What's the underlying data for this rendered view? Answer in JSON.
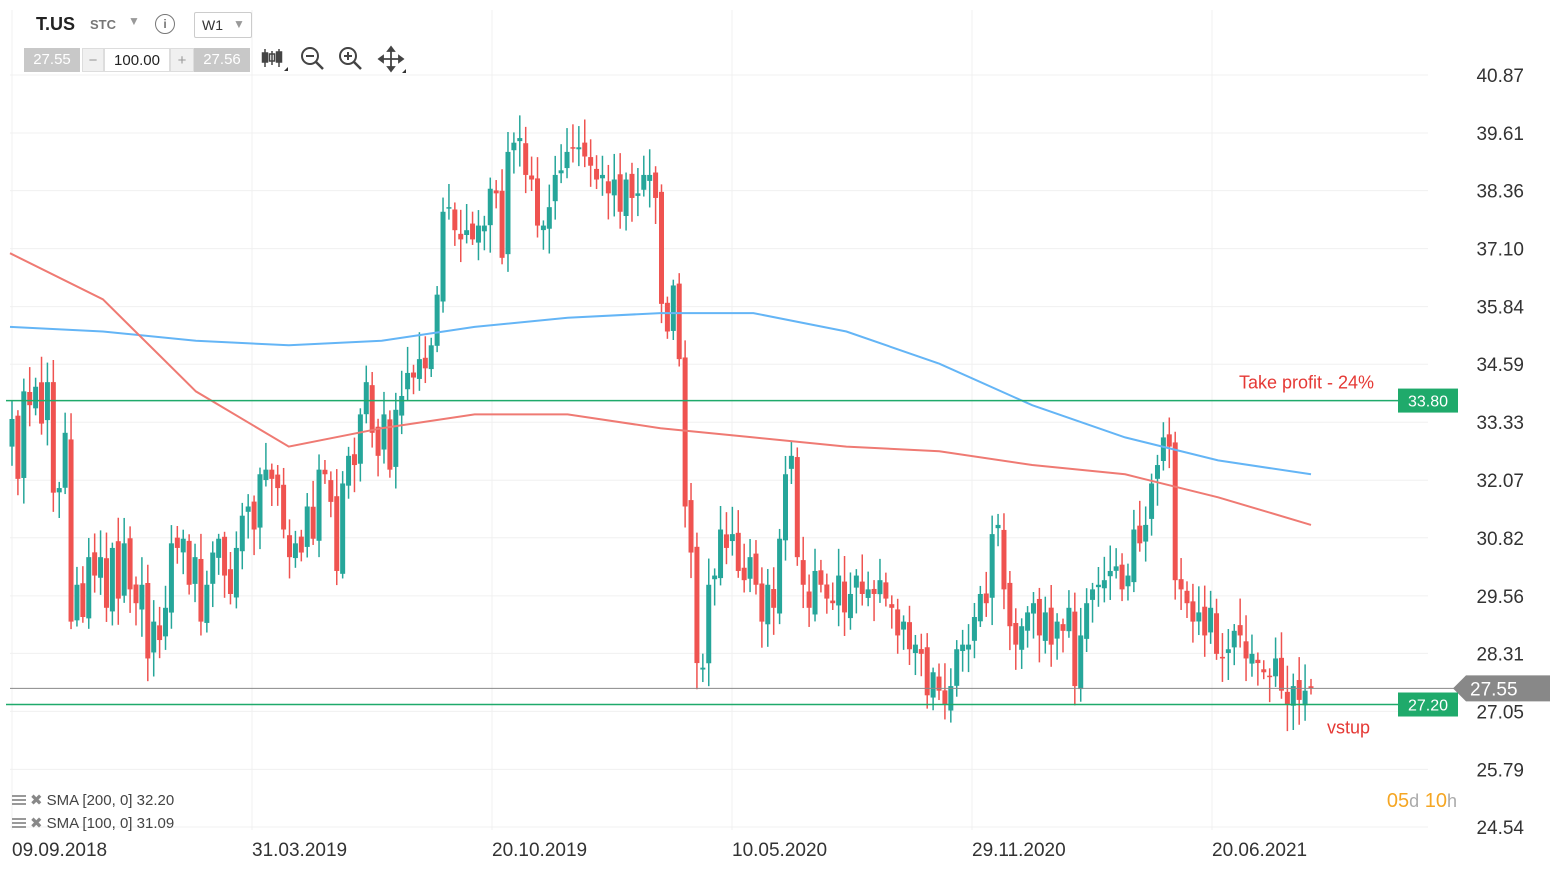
{
  "toolbar": {
    "symbol": "T.US",
    "type": "STC",
    "timeframe": "W1",
    "bid": "27.55",
    "quantity": "100.00",
    "ask": "27.56",
    "minus": "−",
    "plus": "+",
    "tools": [
      "candlestick-icon",
      "zoom-out-icon",
      "zoom-in-icon",
      "move-icon"
    ]
  },
  "legend": [
    {
      "text": "SMA [200, 0] 32.20"
    },
    {
      "text": "SMA [100, 0] 31.09"
    }
  ],
  "timer": {
    "days": "05",
    "days_unit": "d",
    "hours": "10",
    "hours_unit": "h"
  },
  "colors": {
    "up": "#26a69a",
    "down": "#ef5350",
    "sma200": "#64b5f6",
    "sma100": "#ef7a73",
    "level": "#1faa6b",
    "current": "#888888"
  },
  "chart_data": {
    "type": "candlestick",
    "y_ticks": [
      "40.87",
      "39.61",
      "38.36",
      "37.10",
      "35.84",
      "34.59",
      "33.33",
      "32.07",
      "30.82",
      "29.56",
      "28.31",
      "27.05",
      "25.79",
      "24.54"
    ],
    "y_tick_values": [
      40.87,
      39.61,
      38.36,
      37.1,
      35.84,
      34.59,
      33.33,
      32.07,
      30.82,
      29.56,
      28.31,
      27.05,
      25.79,
      24.54
    ],
    "x_ticks": [
      "09.09.2018",
      "31.03.2019",
      "20.10.2019",
      "10.05.2020",
      "29.11.2020",
      "20.06.2021"
    ],
    "current_price": {
      "value": 27.55,
      "label": "27.55"
    },
    "levels": [
      {
        "value": 33.8,
        "label": "33.80",
        "note": "Take profit - 24%"
      },
      {
        "value": 27.2,
        "label": "27.20",
        "note": "vstup"
      }
    ],
    "candles_close": [
      33.4,
      32.1,
      34.0,
      33.7,
      34.1,
      33.3,
      34.2,
      31.8,
      31.9,
      33.1,
      29.0,
      29.8,
      29.1,
      30.4,
      30.0,
      30.4,
      29.3,
      30.6,
      29.5,
      30.7,
      29.7,
      29.4,
      29.8,
      28.2,
      29.0,
      28.6,
      29.3,
      30.7,
      30.6,
      30.8,
      29.8,
      30.4,
      29.0,
      29.8,
      30.5,
      30.8,
      30.0,
      29.6,
      30.6,
      31.3,
      31.5,
      31.0,
      32.2,
      32.3,
      32.1,
      31.9,
      31.0,
      30.4,
      30.7,
      30.5,
      31.5,
      30.8,
      32.3,
      32.2,
      31.6,
      30.1,
      32.0,
      32.6,
      32.4,
      33.5,
      34.2,
      33.1,
      32.6,
      33.5,
      32.3,
      33.6,
      33.9,
      34.4,
      34.3,
      34.7,
      34.5,
      35.0,
      36.1,
      37.9,
      38.0,
      37.5,
      37.3,
      37.5,
      37.3,
      37.6,
      37.6,
      38.4,
      38.3,
      36.9,
      39.2,
      39.4,
      39.5,
      38.7,
      38.6,
      37.6,
      37.6,
      38.0,
      38.7,
      38.8,
      39.2,
      39.3,
      39.3,
      39.1,
      38.9,
      38.6,
      38.7,
      38.3,
      38.6,
      37.9,
      38.6,
      38.2,
      38.3,
      38.7,
      38.7,
      38.2,
      35.9,
      35.3,
      36.3,
      34.7,
      31.5,
      30.5,
      28.1,
      28.0,
      29.8,
      30.0,
      31.0,
      30.6,
      30.9,
      30.1,
      29.9,
      30.4,
      29.8,
      29.0,
      29.8,
      29.3,
      30.8,
      32.2,
      32.6,
      30.4,
      29.8,
      29.3,
      30.1,
      29.8,
      29.5,
      29.4,
      30.0,
      29.2,
      29.6,
      30.0,
      29.6,
      29.7,
      29.6,
      29.9,
      29.5,
      29.3,
      28.7,
      29.0,
      28.4,
      28.5,
      28.3,
      27.4,
      27.9,
      27.5,
      27.2,
      27.6,
      28.4,
      28.5,
      28.5,
      29.1,
      29.6,
      29.4,
      30.9,
      31.1,
      29.7,
      28.9,
      28.5,
      28.9,
      29.2,
      29.4,
      28.7,
      29.2,
      28.5,
      29.0,
      28.8,
      29.3,
      27.6,
      28.7,
      29.4,
      29.7,
      29.8,
      29.9,
      30.1,
      30.2,
      29.7,
      30.0,
      31.0,
      30.7,
      31.1,
      32.0,
      32.4,
      33.0,
      32.8,
      29.9,
      29.7,
      29.4,
      29.0,
      29.2,
      28.7,
      29.3,
      28.3,
      28.2,
      28.4,
      28.8,
      28.7,
      28.2,
      28.3,
      28.1,
      27.9,
      27.8,
      28.2,
      27.5,
      27.2,
      27.6,
      27.3,
      27.5,
      27.55
    ],
    "sma200": [
      35.4,
      35.3,
      35.1,
      35.0,
      35.1,
      35.4,
      35.6,
      35.7,
      35.7,
      35.3,
      34.6,
      33.7,
      33.0,
      32.5,
      32.2
    ],
    "sma100": [
      37.0,
      36.0,
      34.0,
      32.8,
      33.2,
      33.5,
      33.5,
      33.2,
      33.0,
      32.8,
      32.7,
      32.4,
      32.2,
      31.7,
      31.1
    ]
  }
}
